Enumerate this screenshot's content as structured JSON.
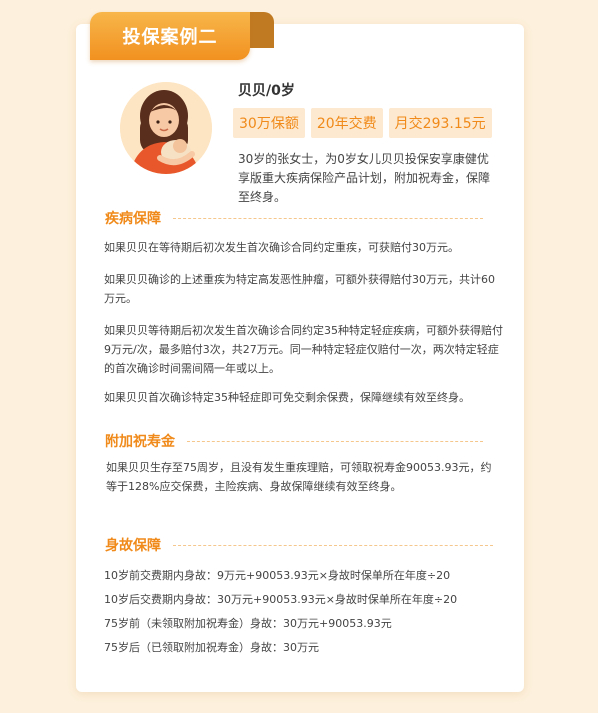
{
  "header": {
    "tab_label": "投保案例二"
  },
  "profile": {
    "name": "贝贝/0岁",
    "tags": [
      "30万保额",
      "20年交费",
      "月交293.15元"
    ],
    "intro": "30岁的张女士，为0岁女儿贝贝投保安享康健优享版重大疾病保险产品计划，附加祝寿金，保障至终身。"
  },
  "sections": {
    "disease": {
      "title": "疾病保障",
      "paragraphs": [
        "如果贝贝在等待期后初次发生首次确诊合同约定重疾，可获赔付30万元。",
        "如果贝贝确诊的上述重疾为特定高发恶性肿瘤，可额外获得赔付30万元，共计60万元。",
        "如果贝贝等待期后初次发生首次确诊合同约定35种特定轻症疾病，可额外获得赔付9万元/次，最多赔付3次，共27万元。同一种特定轻症仅赔付一次，两次特定轻症的首次确诊时间需间隔一年或以上。",
        "如果贝贝首次确诊特定35种轻症即可免交剩余保费，保障继续有效至终身。"
      ]
    },
    "birthday": {
      "title": "附加祝寿金",
      "paragraph": "如果贝贝生存至75周岁，且没有发生重疾理赔，可领取祝寿金90053.93元，约等于128%应交保费，主险疾病、身故保障继续有效至终身。"
    },
    "death": {
      "title": "身故保障",
      "lines": [
        "10岁前交费期内身故：9万元+90053.93元×身故时保单所在年度÷20",
        "10岁后交费期内身故：30万元+90053.93元×身故时保单所在年度÷20",
        "75岁前（未领取附加祝寿金）身故：30万元+90053.93元",
        "75岁后（已领取附加祝寿金）身故：30万元"
      ]
    }
  }
}
